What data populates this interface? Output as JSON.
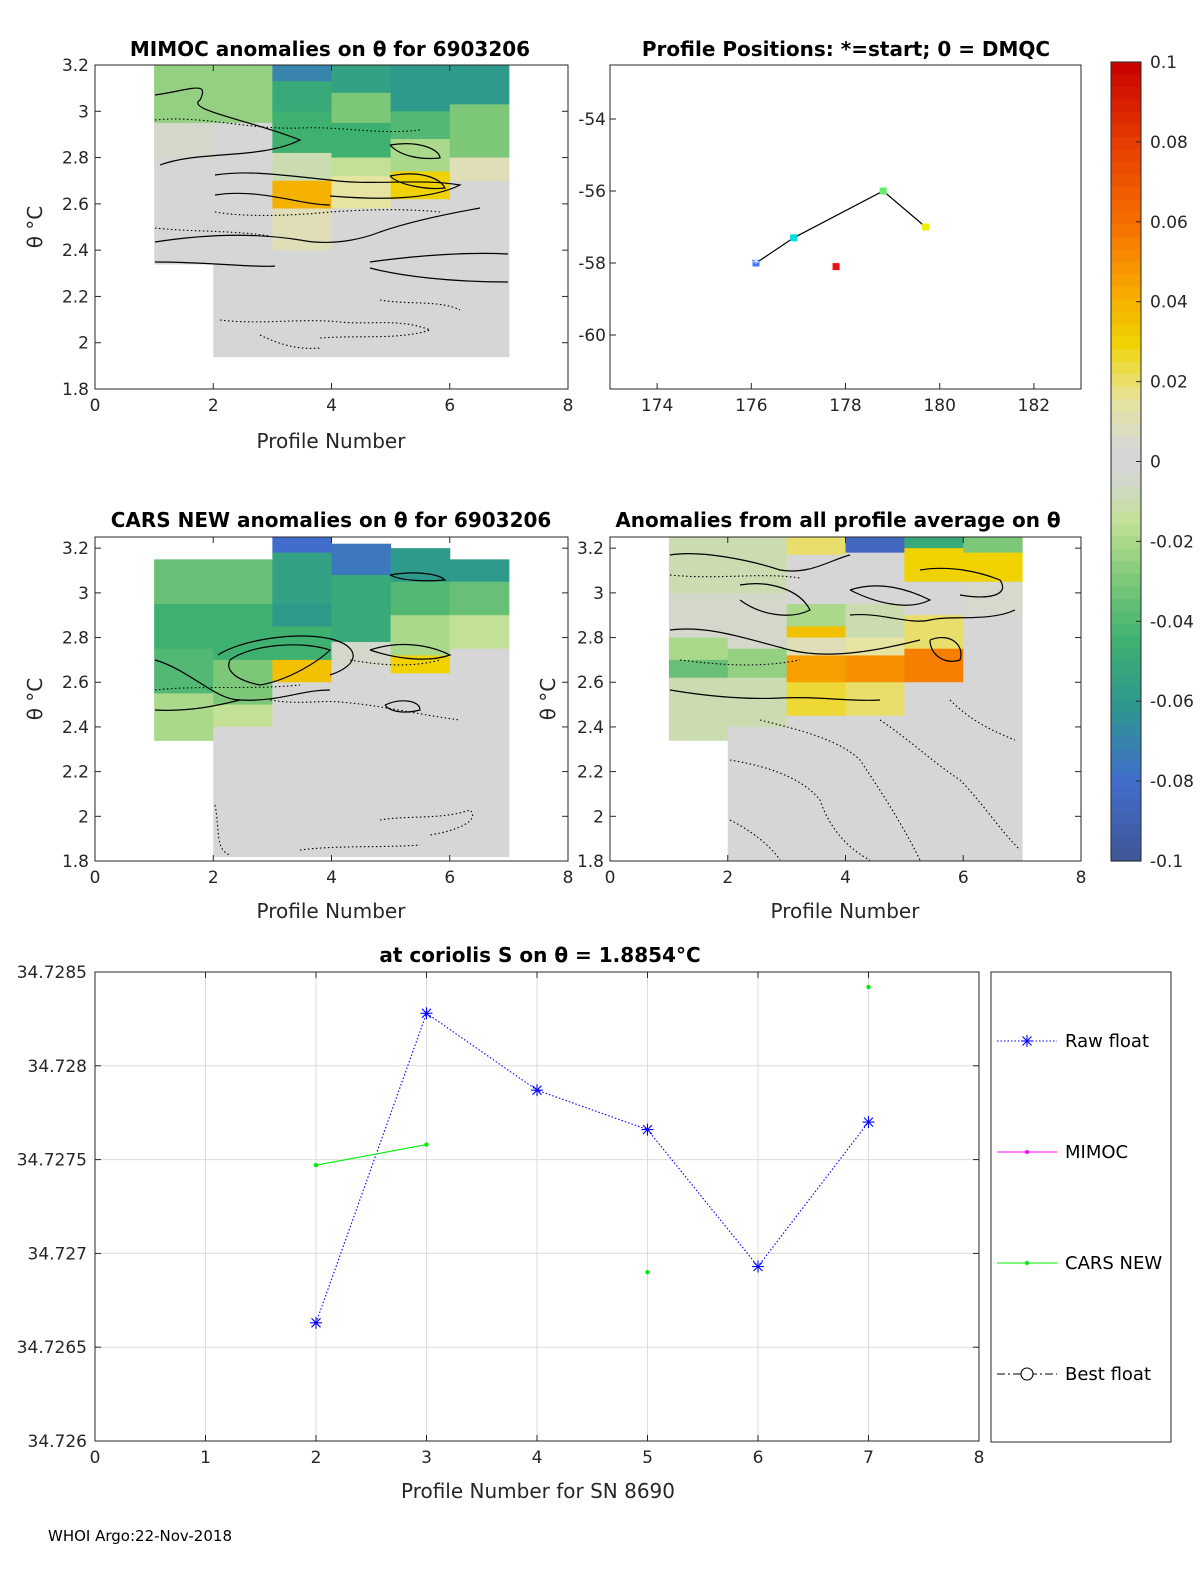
{
  "footer": "WHOI Argo:22-Nov-2018",
  "colorbar": {
    "min": -0.1,
    "max": 0.1,
    "tick_labels": [
      "0.1",
      "0.08",
      "0.06",
      "0.04",
      "0.02",
      "0",
      "-0.02",
      "-0.04",
      "-0.06",
      "-0.08",
      "-0.1"
    ]
  },
  "chart_data": [
    {
      "type": "heatmap",
      "id": "mimoc",
      "title": "MIMOC anomalies on θ  for 6903206",
      "xlabel": "Profile Number",
      "ylabel": "θ °C",
      "xlim": [
        0,
        8
      ],
      "ylim": [
        1.8,
        3.2
      ],
      "xticks": [
        "0",
        "2",
        "4",
        "6",
        "8"
      ],
      "yticks": [
        "1.8",
        "2",
        "2.2",
        "2.4",
        "2.6",
        "2.8",
        "3",
        "3.2"
      ],
      "columns": [
        {
          "x0": 1,
          "x1": 2,
          "ymin": 2.34,
          "ymax": 3.2,
          "bands": [
            [
              3.2,
              2.95,
              -0.025
            ],
            [
              2.95,
              2.8,
              -0.005
            ],
            [
              2.8,
              2.34,
              0.0
            ]
          ]
        },
        {
          "x0": 2,
          "x1": 3,
          "ymin": 1.94,
          "ymax": 3.2,
          "bands": [
            [
              3.2,
              2.95,
              -0.025
            ],
            [
              2.95,
              2.4,
              0.0
            ],
            [
              2.4,
              1.94,
              0.0
            ]
          ]
        },
        {
          "x0": 3,
          "x1": 4,
          "ymin": 1.94,
          "ymax": 3.2,
          "bands": [
            [
              3.2,
              3.13,
              -0.07
            ],
            [
              3.13,
              3.0,
              -0.05
            ],
            [
              3.0,
              2.82,
              -0.045
            ],
            [
              2.82,
              2.7,
              -0.01
            ],
            [
              2.7,
              2.58,
              0.04
            ],
            [
              2.58,
              2.4,
              0.01
            ],
            [
              2.4,
              1.94,
              0.0
            ]
          ]
        },
        {
          "x0": 4,
          "x1": 5,
          "ymin": 1.94,
          "ymax": 3.2,
          "bands": [
            [
              3.2,
              3.08,
              -0.055
            ],
            [
              3.08,
              2.95,
              -0.03
            ],
            [
              2.95,
              2.8,
              -0.045
            ],
            [
              2.8,
              2.72,
              -0.015
            ],
            [
              2.72,
              2.58,
              0.015
            ],
            [
              2.58,
              1.94,
              0.0
            ]
          ]
        },
        {
          "x0": 5,
          "x1": 6,
          "ymin": 1.94,
          "ymax": 3.2,
          "bands": [
            [
              3.2,
              3.0,
              -0.06
            ],
            [
              3.0,
              2.88,
              -0.04
            ],
            [
              2.88,
              2.74,
              -0.02
            ],
            [
              2.74,
              2.62,
              0.03
            ],
            [
              2.62,
              1.94,
              0.0
            ]
          ]
        },
        {
          "x0": 6,
          "x1": 7,
          "ymin": 1.94,
          "ymax": 3.2,
          "bands": [
            [
              3.2,
              3.03,
              -0.06
            ],
            [
              3.03,
              2.8,
              -0.03
            ],
            [
              2.8,
              2.7,
              0.01
            ],
            [
              2.7,
              1.94,
              0.0
            ]
          ]
        }
      ]
    },
    {
      "type": "line",
      "id": "positions",
      "title": "Profile Positions: *=start; 0 = DMQC",
      "xlim": [
        173,
        183
      ],
      "ylim": [
        -61.5,
        -52.5
      ],
      "xticks": [
        "174",
        "176",
        "178",
        "180",
        "182"
      ],
      "yticks": [
        "-54",
        "-56",
        "-58",
        "-60"
      ],
      "track": [
        [
          176.1,
          -58.0
        ],
        [
          176.9,
          -57.3
        ],
        [
          178.8,
          -56.0
        ],
        [
          179.7,
          -57.0
        ]
      ],
      "markers": [
        {
          "lon": 176.1,
          "lat": -58.0,
          "color": "#4477ff"
        },
        {
          "lon": 176.9,
          "lat": -57.3,
          "color": "#00dddd"
        },
        {
          "lon": 178.8,
          "lat": -56.0,
          "color": "#66ee66"
        },
        {
          "lon": 179.7,
          "lat": -57.0,
          "color": "#eeee00"
        },
        {
          "lon": 177.8,
          "lat": -58.1,
          "color": "#ee1111"
        }
      ]
    },
    {
      "type": "heatmap",
      "id": "cars",
      "title": "CARS NEW anomalies on θ for 6903206",
      "xlabel": "Profile Number",
      "ylabel": "θ °C",
      "xlim": [
        0,
        8
      ],
      "ylim": [
        1.8,
        3.25
      ],
      "xticks": [
        "0",
        "2",
        "4",
        "6",
        "8"
      ],
      "yticks": [
        "1.8",
        "2",
        "2.2",
        "2.4",
        "2.6",
        "2.8",
        "3",
        "3.2"
      ],
      "columns": [
        {
          "x0": 1,
          "x1": 2,
          "ymin": 2.34,
          "ymax": 3.15,
          "bands": [
            [
              3.15,
              2.95,
              -0.035
            ],
            [
              2.95,
              2.75,
              -0.045
            ],
            [
              2.75,
              2.55,
              -0.04
            ],
            [
              2.55,
              2.34,
              -0.02
            ]
          ]
        },
        {
          "x0": 2,
          "x1": 3,
          "ymin": 1.82,
          "ymax": 3.15,
          "bands": [
            [
              3.15,
              2.95,
              -0.035
            ],
            [
              2.95,
              2.7,
              -0.045
            ],
            [
              2.7,
              2.5,
              -0.03
            ],
            [
              2.5,
              2.4,
              -0.015
            ],
            [
              2.4,
              1.82,
              0.0
            ]
          ]
        },
        {
          "x0": 3,
          "x1": 4,
          "ymin": 1.82,
          "ymax": 3.25,
          "bands": [
            [
              3.25,
              3.18,
              -0.08
            ],
            [
              3.18,
              2.95,
              -0.055
            ],
            [
              2.95,
              2.85,
              -0.06
            ],
            [
              2.85,
              2.7,
              -0.045
            ],
            [
              2.7,
              2.6,
              0.035
            ],
            [
              2.6,
              2.45,
              0.0
            ],
            [
              2.45,
              1.82,
              0.0
            ]
          ]
        },
        {
          "x0": 4,
          "x1": 5,
          "ymin": 1.82,
          "ymax": 3.22,
          "bands": [
            [
              3.22,
              3.08,
              -0.075
            ],
            [
              3.08,
              2.78,
              -0.05
            ],
            [
              2.78,
              2.67,
              -0.005
            ],
            [
              2.67,
              1.82,
              0.0
            ]
          ]
        },
        {
          "x0": 5,
          "x1": 6,
          "ymin": 1.82,
          "ymax": 3.2,
          "bands": [
            [
              3.2,
              3.05,
              -0.06
            ],
            [
              3.05,
              2.9,
              -0.04
            ],
            [
              2.9,
              2.72,
              -0.02
            ],
            [
              2.72,
              2.64,
              0.03
            ],
            [
              2.64,
              1.82,
              0.0
            ]
          ]
        },
        {
          "x0": 6,
          "x1": 7,
          "ymin": 1.82,
          "ymax": 3.15,
          "bands": [
            [
              3.15,
              3.05,
              -0.06
            ],
            [
              3.05,
              2.9,
              -0.035
            ],
            [
              2.9,
              2.75,
              -0.015
            ],
            [
              2.75,
              1.82,
              0.0
            ]
          ]
        }
      ]
    },
    {
      "type": "heatmap",
      "id": "profavg",
      "title": "Anomalies from all profile average on θ",
      "xlabel": "Profile Number",
      "ylabel": "θ °C",
      "xlim": [
        0,
        8
      ],
      "ylim": [
        1.8,
        3.25
      ],
      "xticks": [
        "0",
        "2",
        "4",
        "6",
        "8"
      ],
      "yticks": [
        "1.8",
        "2",
        "2.2",
        "2.4",
        "2.6",
        "2.8",
        "3",
        "3.2"
      ],
      "columns": [
        {
          "x0": 1,
          "x1": 2,
          "ymin": 2.34,
          "ymax": 3.25,
          "bands": [
            [
              3.25,
              3.0,
              -0.01
            ],
            [
              3.0,
              2.8,
              -0.005
            ],
            [
              2.8,
              2.7,
              -0.02
            ],
            [
              2.7,
              2.62,
              -0.035
            ],
            [
              2.62,
              2.34,
              -0.01
            ]
          ]
        },
        {
          "x0": 2,
          "x1": 3,
          "ymin": 1.8,
          "ymax": 3.25,
          "bands": [
            [
              3.25,
              3.0,
              -0.01
            ],
            [
              3.0,
              2.75,
              -0.005
            ],
            [
              2.75,
              2.62,
              -0.025
            ],
            [
              2.62,
              2.4,
              -0.01
            ],
            [
              2.4,
              1.8,
              0.0
            ]
          ]
        },
        {
          "x0": 3,
          "x1": 4,
          "ymin": 1.8,
          "ymax": 3.25,
          "bands": [
            [
              3.25,
              3.17,
              0.02
            ],
            [
              3.17,
              2.95,
              0.0
            ],
            [
              2.95,
              2.85,
              -0.02
            ],
            [
              2.85,
              2.8,
              0.035
            ],
            [
              2.8,
              2.72,
              0.01
            ],
            [
              2.72,
              2.6,
              0.045
            ],
            [
              2.6,
              2.45,
              0.025
            ],
            [
              2.45,
              1.8,
              0.0
            ]
          ]
        },
        {
          "x0": 4,
          "x1": 5,
          "ymin": 1.8,
          "ymax": 3.25,
          "bands": [
            [
              3.25,
              3.18,
              -0.085
            ],
            [
              3.18,
              2.95,
              0.0
            ],
            [
              2.95,
              2.8,
              -0.01
            ],
            [
              2.8,
              2.72,
              0.015
            ],
            [
              2.72,
              2.6,
              0.05
            ],
            [
              2.6,
              2.45,
              0.02
            ],
            [
              2.45,
              1.8,
              0.0
            ]
          ]
        },
        {
          "x0": 5,
          "x1": 6,
          "ymin": 1.8,
          "ymax": 3.25,
          "bands": [
            [
              3.25,
              3.2,
              -0.05
            ],
            [
              3.2,
              3.05,
              0.03
            ],
            [
              3.05,
              2.9,
              0.0
            ],
            [
              2.9,
              2.75,
              0.02
            ],
            [
              2.75,
              2.6,
              0.055
            ],
            [
              2.6,
              2.45,
              0.0
            ],
            [
              2.45,
              1.8,
              0.0
            ]
          ]
        },
        {
          "x0": 6,
          "x1": 7,
          "ymin": 1.8,
          "ymax": 3.25,
          "bands": [
            [
              3.25,
              3.18,
              -0.03
            ],
            [
              3.18,
              3.05,
              0.03
            ],
            [
              3.05,
              2.9,
              0.005
            ],
            [
              2.9,
              2.6,
              0.0
            ],
            [
              2.6,
              1.8,
              0.0
            ]
          ]
        }
      ]
    },
    {
      "type": "line",
      "id": "salinity",
      "title": "at coriolis S on θ = 1.8854°C",
      "xlabel": "Profile Number for SN 8690",
      "xlim": [
        0,
        8
      ],
      "ylim": [
        34.726,
        34.7285
      ],
      "xticks": [
        "0",
        "1",
        "2",
        "3",
        "4",
        "5",
        "6",
        "7",
        "8"
      ],
      "yticks": [
        "34.726",
        "34.7265",
        "34.727",
        "34.7275",
        "34.728",
        "34.7285"
      ],
      "series": [
        {
          "name": "Raw float",
          "color": "#0000ff",
          "style": "dotted",
          "marker": "asterisk",
          "points": [
            [
              2,
              34.72663
            ],
            [
              3,
              34.72828
            ],
            [
              4,
              34.72787
            ],
            [
              5,
              34.72766
            ],
            [
              6,
              34.72693
            ],
            [
              7,
              34.7277
            ]
          ]
        },
        {
          "name": "MIMOC",
          "color": "#ff00ff",
          "style": "solid",
          "marker": "dot",
          "points": []
        },
        {
          "name": "CARS NEW",
          "color": "#00ee00",
          "style": "solid",
          "marker": "dot",
          "points": [
            [
              2,
              34.72747
            ],
            [
              3,
              34.72758
            ]
          ],
          "isolated": [
            [
              5,
              34.7269
            ],
            [
              7,
              34.72842
            ]
          ]
        },
        {
          "name": "Best float",
          "color": "#000000",
          "style": "dashdot",
          "marker": "circle",
          "points": []
        }
      ]
    }
  ]
}
